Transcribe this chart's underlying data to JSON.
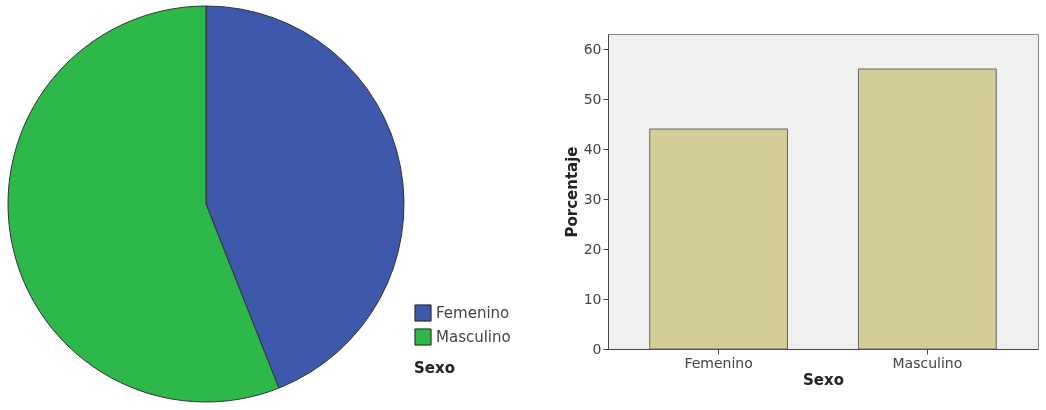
{
  "chart_data": [
    {
      "type": "pie",
      "categories": [
        "Femenino",
        "Masculino"
      ],
      "values": [
        44,
        56
      ],
      "colors": [
        "#3e58ac",
        "#2eb84a"
      ],
      "legend": "bottom right",
      "legend_title": "Sexo"
    },
    {
      "type": "bar",
      "categories": [
        "Femenino",
        "Masculino"
      ],
      "values": [
        44,
        56
      ],
      "color": "#d3ce97",
      "xlabel": "Sexo",
      "ylabel": "Porcentaje",
      "ylim": [
        0,
        63
      ],
      "yticks": [
        0,
        10,
        20,
        30,
        40,
        50,
        60
      ],
      "grid": false
    }
  ]
}
